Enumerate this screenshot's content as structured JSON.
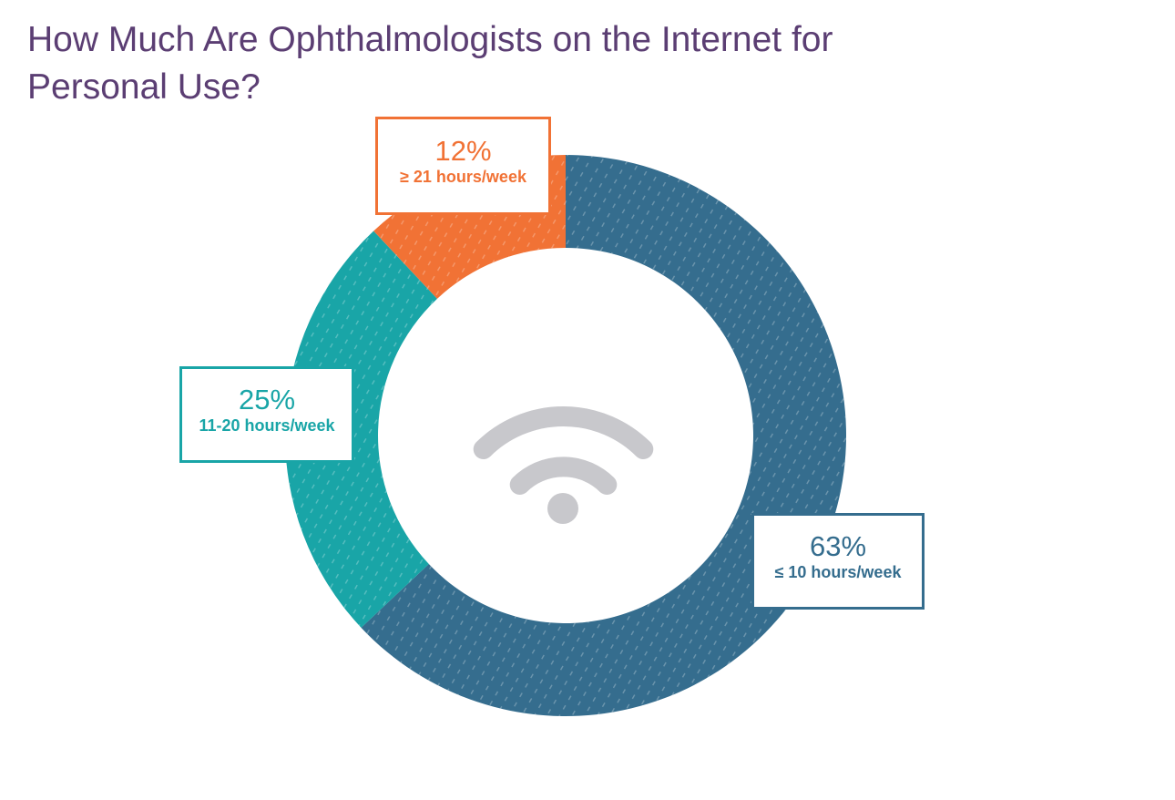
{
  "title": "How Much Are Ophthalmologists on the Internet for Personal Use?",
  "chart_data": {
    "type": "pie",
    "donut": true,
    "title": "How Much Are Ophthalmologists on the Internet for Personal Use?",
    "center_icon": "wifi-icon",
    "slices": [
      {
        "label": "≤ 10 hours/week",
        "value": 63,
        "value_label": "63%",
        "color": "#356d8e"
      },
      {
        "label": "11-20 hours/week",
        "value": 25,
        "value_label": "25%",
        "color": "#19a5a7"
      },
      {
        "label": "≥ 21 hours/week",
        "value": 12,
        "value_label": "12%",
        "color": "#f17235"
      }
    ]
  },
  "colors": {
    "title": "#5b3e73",
    "icon": "#c8c8cc",
    "background": "#ffffff"
  }
}
